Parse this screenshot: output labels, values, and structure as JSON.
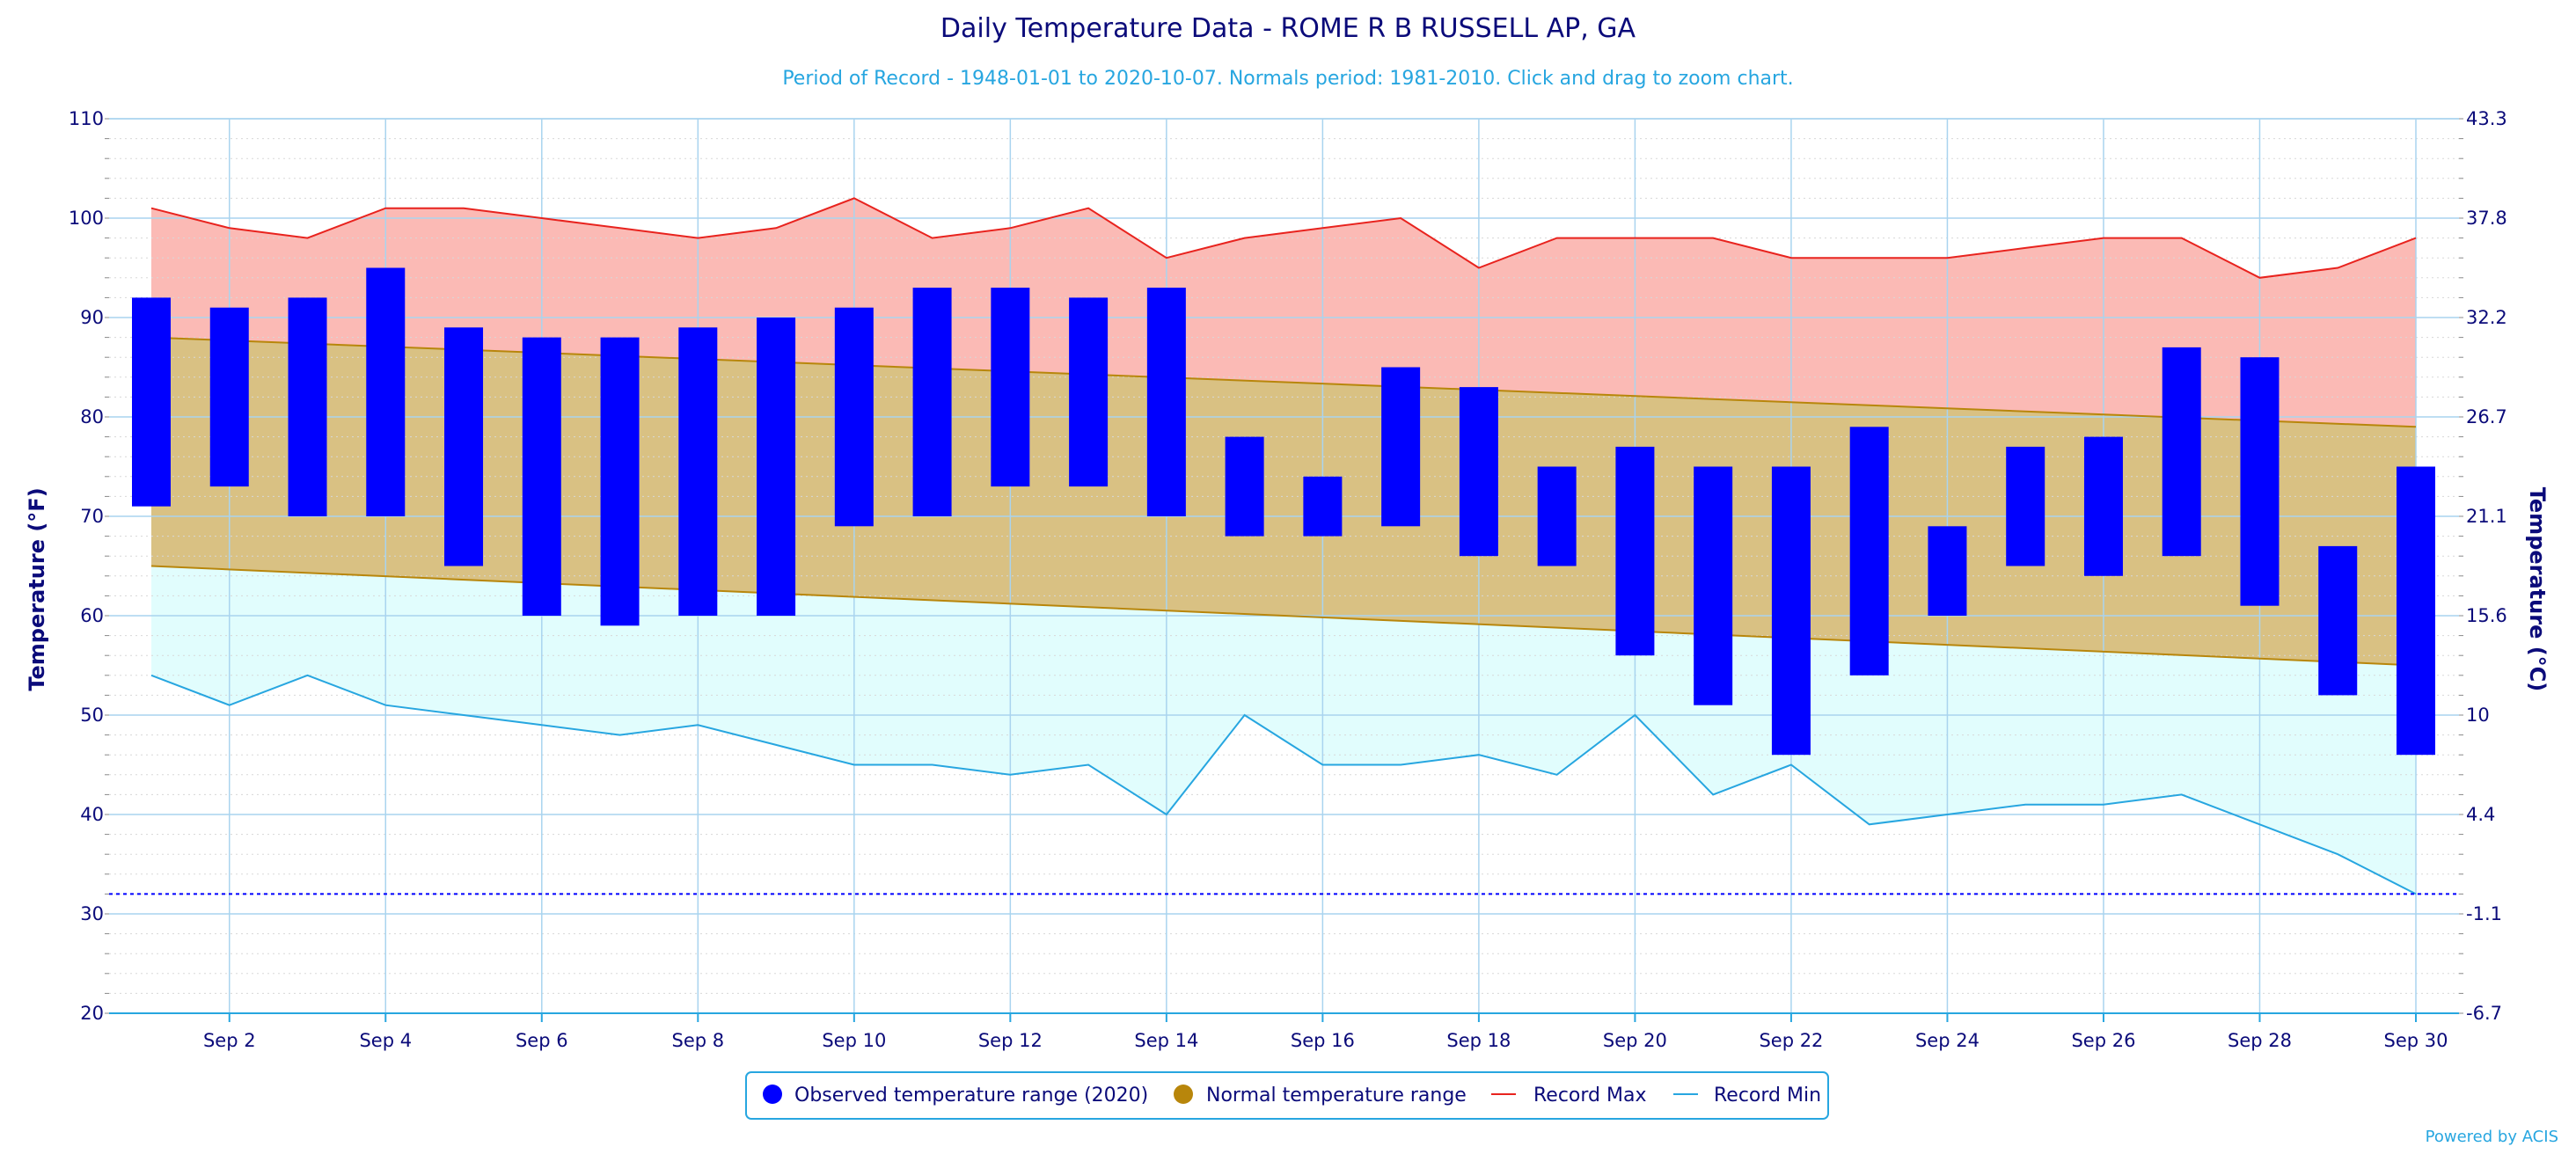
{
  "chart_data": {
    "type": "bar",
    "title": "Daily Temperature Data - ROME R B RUSSELL AP, GA",
    "subtitle": "Period of Record - 1948-01-01 to 2020-10-07. Normals period: 1981-2010. Click and drag to zoom chart.",
    "ylabel": "Temperature (°F)",
    "ylabel_right": "Temperature (°C)",
    "ylim": [
      20,
      110
    ],
    "xlim": [
      1,
      30
    ],
    "yticks": [
      "20",
      "30",
      "40",
      "50",
      "60",
      "70",
      "80",
      "90",
      "100",
      "110"
    ],
    "yticks_right": [
      "-6.7",
      "-1.1",
      "4.4",
      "10",
      "15.6",
      "21.1",
      "26.7",
      "32.2",
      "37.8",
      "43.3"
    ],
    "xticks": [
      {
        "day": 2,
        "label": "Sep 2"
      },
      {
        "day": 4,
        "label": "Sep 4"
      },
      {
        "day": 6,
        "label": "Sep 6"
      },
      {
        "day": 8,
        "label": "Sep 8"
      },
      {
        "day": 10,
        "label": "Sep 10"
      },
      {
        "day": 12,
        "label": "Sep 12"
      },
      {
        "day": 14,
        "label": "Sep 14"
      },
      {
        "day": 16,
        "label": "Sep 16"
      },
      {
        "day": 18,
        "label": "Sep 18"
      },
      {
        "day": 20,
        "label": "Sep 20"
      },
      {
        "day": 22,
        "label": "Sep 22"
      },
      {
        "day": 24,
        "label": "Sep 24"
      },
      {
        "day": 26,
        "label": "Sep 26"
      },
      {
        "day": 28,
        "label": "Sep 28"
      },
      {
        "day": 30,
        "label": "Sep 30"
      }
    ],
    "days": [
      1,
      2,
      3,
      4,
      5,
      6,
      7,
      8,
      9,
      10,
      11,
      12,
      13,
      14,
      15,
      16,
      17,
      18,
      19,
      20,
      21,
      22,
      23,
      24,
      25,
      26,
      27,
      28,
      29,
      30
    ],
    "series": [
      {
        "name": "Observed temperature range (2020)",
        "color": "#0000ff",
        "high": [
          92,
          91,
          92,
          95,
          89,
          88,
          88,
          89,
          90,
          91,
          93,
          93,
          92,
          93,
          78,
          74,
          85,
          83,
          75,
          77,
          75,
          75,
          79,
          69,
          77,
          78,
          87,
          86,
          67,
          75
        ],
        "low": [
          71,
          73,
          70,
          70,
          65,
          60,
          59,
          60,
          60,
          69,
          70,
          73,
          73,
          70,
          68,
          68,
          69,
          66,
          65,
          56,
          51,
          46,
          54,
          60,
          65,
          64,
          66,
          61,
          52,
          46
        ]
      },
      {
        "name": "Normal temperature range",
        "color": "#b8860b",
        "fill": "#d9c183",
        "high_start": 88,
        "high_end": 79,
        "low_start": 65,
        "low_end": 55
      },
      {
        "name": "Record Max",
        "color": "#e8231e",
        "fill": "#fbbab5",
        "values": [
          101,
          99,
          98,
          101,
          101,
          100,
          99,
          98,
          99,
          102,
          98,
          99,
          101,
          96,
          98,
          99,
          100,
          95,
          98,
          98,
          98,
          96,
          96,
          96,
          97,
          98,
          98,
          94,
          95,
          98
        ]
      },
      {
        "name": "Record Min",
        "color": "#27a6e0",
        "fill": "#e1fdfd",
        "values": [
          54,
          51,
          54,
          51,
          50,
          49,
          48,
          49,
          47,
          45,
          45,
          44,
          45,
          40,
          50,
          45,
          45,
          46,
          44,
          50,
          42,
          45,
          39,
          40,
          41,
          41,
          42,
          39,
          36,
          32
        ]
      }
    ],
    "freezing_line": 32,
    "grid": true,
    "legend_position": "bottom-center",
    "credits": "Powered by ACIS"
  }
}
